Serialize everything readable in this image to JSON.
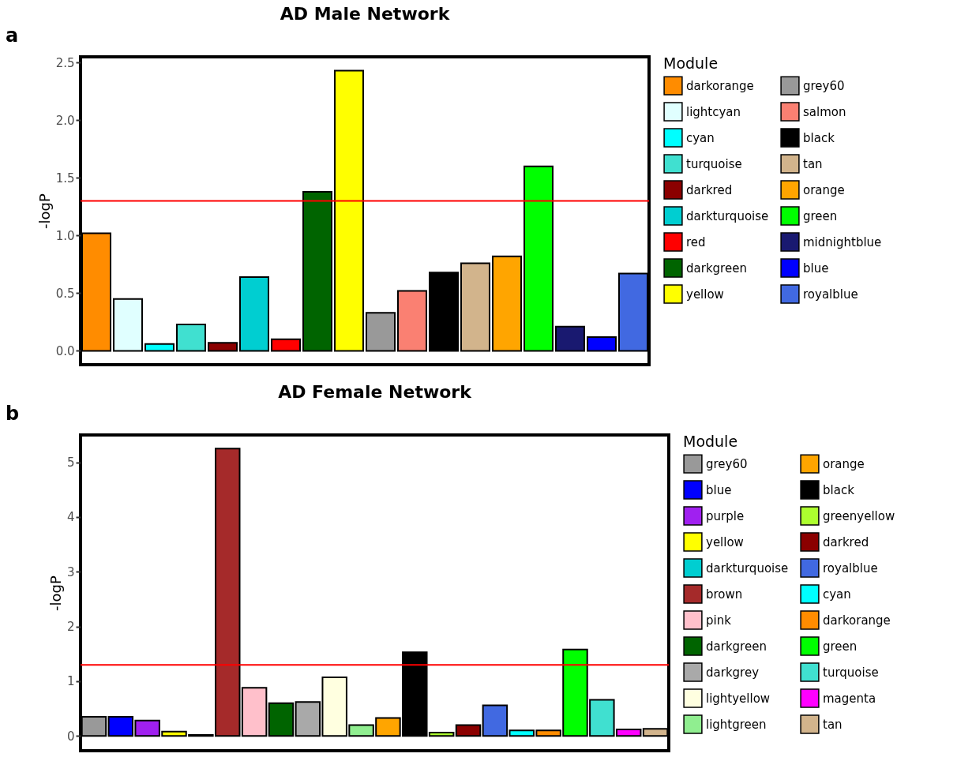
{
  "chart_data": [
    {
      "type": "bar",
      "title": "AD Male Network",
      "ylabel": "-logP",
      "legend_title": "Module",
      "legend": "right",
      "tick_labels": "y",
      "annotations": [
        "a"
      ],
      "categories": [
        null,
        null,
        null,
        null,
        null,
        null,
        null,
        null,
        null,
        null,
        null,
        null,
        null,
        null,
        null,
        null,
        null,
        null
      ],
      "series": [
        {
          "name": "darkorange",
          "color": "#ff8c00",
          "values": [
            1.02,
            null,
            null,
            null,
            null,
            null,
            null,
            null,
            null,
            null,
            null,
            null,
            null,
            null,
            null,
            null,
            null,
            null
          ]
        },
        {
          "name": "lightcyan",
          "color": "#e0ffff",
          "values": [
            null,
            0.45,
            null,
            null,
            null,
            null,
            null,
            null,
            null,
            null,
            null,
            null,
            null,
            null,
            null,
            null,
            null,
            null
          ]
        },
        {
          "name": "cyan",
          "color": "#00ffff",
          "values": [
            null,
            null,
            0.06,
            null,
            null,
            null,
            null,
            null,
            null,
            null,
            null,
            null,
            null,
            null,
            null,
            null,
            null,
            null
          ]
        },
        {
          "name": "turquoise",
          "color": "#40e0d0",
          "values": [
            null,
            null,
            null,
            0.23,
            null,
            null,
            null,
            null,
            null,
            null,
            null,
            null,
            null,
            null,
            null,
            null,
            null,
            null
          ]
        },
        {
          "name": "darkred",
          "color": "#8b0000",
          "values": [
            null,
            null,
            null,
            null,
            0.07,
            null,
            null,
            null,
            null,
            null,
            null,
            null,
            null,
            null,
            null,
            null,
            null,
            null
          ]
        },
        {
          "name": "darkturquoise",
          "color": "#00ced1",
          "values": [
            null,
            null,
            null,
            null,
            null,
            0.64,
            null,
            null,
            null,
            null,
            null,
            null,
            null,
            null,
            null,
            null,
            null,
            null
          ]
        },
        {
          "name": "red",
          "color": "#ff0000",
          "values": [
            null,
            null,
            null,
            null,
            null,
            null,
            0.1,
            null,
            null,
            null,
            null,
            null,
            null,
            null,
            null,
            null,
            null,
            null
          ]
        },
        {
          "name": "darkgreen",
          "color": "#006400",
          "values": [
            null,
            null,
            null,
            null,
            null,
            null,
            null,
            1.38,
            null,
            null,
            null,
            null,
            null,
            null,
            null,
            null,
            null,
            null
          ]
        },
        {
          "name": "yellow",
          "color": "#ffff00",
          "values": [
            null,
            null,
            null,
            null,
            null,
            null,
            null,
            null,
            2.43,
            null,
            null,
            null,
            null,
            null,
            null,
            null,
            null,
            null
          ]
        },
        {
          "name": "grey60",
          "color": "#999999",
          "values": [
            null,
            null,
            null,
            null,
            null,
            null,
            null,
            null,
            null,
            0.33,
            null,
            null,
            null,
            null,
            null,
            null,
            null,
            null
          ]
        },
        {
          "name": "salmon",
          "color": "#fa8072",
          "values": [
            null,
            null,
            null,
            null,
            null,
            null,
            null,
            null,
            null,
            null,
            0.52,
            null,
            null,
            null,
            null,
            null,
            null,
            null
          ]
        },
        {
          "name": "black",
          "color": "#000000",
          "values": [
            null,
            null,
            null,
            null,
            null,
            null,
            null,
            null,
            null,
            null,
            null,
            0.68,
            null,
            null,
            null,
            null,
            null,
            null
          ]
        },
        {
          "name": "tan",
          "color": "#d2b48c",
          "values": [
            null,
            null,
            null,
            null,
            null,
            null,
            null,
            null,
            null,
            null,
            null,
            null,
            0.76,
            null,
            null,
            null,
            null,
            null
          ]
        },
        {
          "name": "orange",
          "color": "#ffa500",
          "values": [
            null,
            null,
            null,
            null,
            null,
            null,
            null,
            null,
            null,
            null,
            null,
            null,
            null,
            0.82,
            null,
            null,
            null,
            null
          ]
        },
        {
          "name": "green",
          "color": "#00ff00",
          "values": [
            null,
            null,
            null,
            null,
            null,
            null,
            null,
            null,
            null,
            null,
            null,
            null,
            null,
            null,
            1.6,
            null,
            null,
            null
          ]
        },
        {
          "name": "midnightblue",
          "color": "#191970",
          "values": [
            null,
            null,
            null,
            null,
            null,
            null,
            null,
            null,
            null,
            null,
            null,
            null,
            null,
            null,
            null,
            0.21,
            null,
            null
          ]
        },
        {
          "name": "blue",
          "color": "#0000ff",
          "values": [
            null,
            null,
            null,
            null,
            null,
            null,
            null,
            null,
            null,
            null,
            null,
            null,
            null,
            null,
            null,
            null,
            0.12,
            null
          ]
        },
        {
          "name": "royalblue",
          "color": "#4169e1",
          "values": [
            null,
            null,
            null,
            null,
            null,
            null,
            null,
            null,
            null,
            null,
            null,
            null,
            null,
            null,
            null,
            null,
            null,
            0.67
          ]
        }
      ],
      "ylim": [
        -0.12,
        2.55
      ],
      "yticks": [
        {
          "value": 0,
          "label": "0.0"
        },
        0.5,
        {
          "value": 1,
          "label": "1.0"
        },
        1.5,
        {
          "value": 2,
          "label": "2.0"
        },
        2.5
      ],
      "ref_lines": [
        {
          "axis": "y",
          "value": 1.3,
          "color": "#ff0000"
        }
      ]
    },
    {
      "type": "bar",
      "title": "AD Female Network",
      "ylabel": "-logP",
      "legend_title": "Module",
      "legend": "right",
      "tick_labels": "y",
      "annotations": [
        "b"
      ],
      "categories": [
        null,
        null,
        null,
        null,
        null,
        null,
        null,
        null,
        null,
        null,
        null,
        null,
        null,
        null,
        null,
        null,
        null,
        null,
        null,
        null,
        null,
        null
      ],
      "series": [
        {
          "name": "grey60",
          "color": "#999999",
          "values": [
            0.35,
            null,
            null,
            null,
            null,
            null,
            null,
            null,
            null,
            null,
            null,
            null,
            null,
            null,
            null,
            null,
            null,
            null,
            null,
            null,
            null,
            null
          ]
        },
        {
          "name": "blue",
          "color": "#0000ff",
          "values": [
            null,
            0.35,
            null,
            null,
            null,
            null,
            null,
            null,
            null,
            null,
            null,
            null,
            null,
            null,
            null,
            null,
            null,
            null,
            null,
            null,
            null,
            null
          ]
        },
        {
          "name": "purple",
          "color": "#a020f0",
          "values": [
            null,
            null,
            0.28,
            null,
            null,
            null,
            null,
            null,
            null,
            null,
            null,
            null,
            null,
            null,
            null,
            null,
            null,
            null,
            null,
            null,
            null,
            null
          ]
        },
        {
          "name": "yellow",
          "color": "#ffff00",
          "values": [
            null,
            null,
            null,
            0.08,
            null,
            null,
            null,
            null,
            null,
            null,
            null,
            null,
            null,
            null,
            null,
            null,
            null,
            null,
            null,
            null,
            null,
            null
          ]
        },
        {
          "name": "darkturquoise",
          "color": "#00ced1",
          "values": [
            null,
            null,
            null,
            null,
            0.02,
            null,
            null,
            null,
            null,
            null,
            null,
            null,
            null,
            null,
            null,
            null,
            null,
            null,
            null,
            null,
            null,
            null
          ]
        },
        {
          "name": "brown",
          "color": "#a52a2a",
          "values": [
            null,
            null,
            null,
            null,
            null,
            5.25,
            null,
            null,
            null,
            null,
            null,
            null,
            null,
            null,
            null,
            null,
            null,
            null,
            null,
            null,
            null,
            null
          ]
        },
        {
          "name": "pink",
          "color": "#ffc0cb",
          "values": [
            null,
            null,
            null,
            null,
            null,
            null,
            0.88,
            null,
            null,
            null,
            null,
            null,
            null,
            null,
            null,
            null,
            null,
            null,
            null,
            null,
            null,
            null
          ]
        },
        {
          "name": "darkgreen",
          "color": "#006400",
          "values": [
            null,
            null,
            null,
            null,
            null,
            null,
            null,
            0.6,
            null,
            null,
            null,
            null,
            null,
            null,
            null,
            null,
            null,
            null,
            null,
            null,
            null,
            null
          ]
        },
        {
          "name": "darkgrey",
          "color": "#a9a9a9",
          "values": [
            null,
            null,
            null,
            null,
            null,
            null,
            null,
            null,
            0.62,
            null,
            null,
            null,
            null,
            null,
            null,
            null,
            null,
            null,
            null,
            null,
            null,
            null
          ]
        },
        {
          "name": "lightyellow",
          "color": "#ffffe0",
          "values": [
            null,
            null,
            null,
            null,
            null,
            null,
            null,
            null,
            null,
            1.07,
            null,
            null,
            null,
            null,
            null,
            null,
            null,
            null,
            null,
            null,
            null,
            null
          ]
        },
        {
          "name": "lightgreen",
          "color": "#90ee90",
          "values": [
            null,
            null,
            null,
            null,
            null,
            null,
            null,
            null,
            null,
            null,
            0.2,
            null,
            null,
            null,
            null,
            null,
            null,
            null,
            null,
            null,
            null,
            null
          ]
        },
        {
          "name": "orange",
          "color": "#ffa500",
          "values": [
            null,
            null,
            null,
            null,
            null,
            null,
            null,
            null,
            null,
            null,
            null,
            0.33,
            null,
            null,
            null,
            null,
            null,
            null,
            null,
            null,
            null,
            null
          ]
        },
        {
          "name": "black",
          "color": "#000000",
          "values": [
            null,
            null,
            null,
            null,
            null,
            null,
            null,
            null,
            null,
            null,
            null,
            null,
            1.53,
            null,
            null,
            null,
            null,
            null,
            null,
            null,
            null,
            null
          ]
        },
        {
          "name": "greenyellow",
          "color": "#adff2f",
          "values": [
            null,
            null,
            null,
            null,
            null,
            null,
            null,
            null,
            null,
            null,
            null,
            null,
            null,
            0.06,
            null,
            null,
            null,
            null,
            null,
            null,
            null,
            null
          ]
        },
        {
          "name": "darkred",
          "color": "#8b0000",
          "values": [
            null,
            null,
            null,
            null,
            null,
            null,
            null,
            null,
            null,
            null,
            null,
            null,
            null,
            null,
            0.2,
            null,
            null,
            null,
            null,
            null,
            null,
            null
          ]
        },
        {
          "name": "royalblue",
          "color": "#4169e1",
          "values": [
            null,
            null,
            null,
            null,
            null,
            null,
            null,
            null,
            null,
            null,
            null,
            null,
            null,
            null,
            null,
            0.56,
            null,
            null,
            null,
            null,
            null,
            null
          ]
        },
        {
          "name": "cyan",
          "color": "#00ffff",
          "values": [
            null,
            null,
            null,
            null,
            null,
            null,
            null,
            null,
            null,
            null,
            null,
            null,
            null,
            null,
            null,
            null,
            0.1,
            null,
            null,
            null,
            null,
            null
          ]
        },
        {
          "name": "darkorange",
          "color": "#ff8c00",
          "values": [
            null,
            null,
            null,
            null,
            null,
            null,
            null,
            null,
            null,
            null,
            null,
            null,
            null,
            null,
            null,
            null,
            null,
            0.1,
            null,
            null,
            null,
            null
          ]
        },
        {
          "name": "green",
          "color": "#00ff00",
          "values": [
            null,
            null,
            null,
            null,
            null,
            null,
            null,
            null,
            null,
            null,
            null,
            null,
            null,
            null,
            null,
            null,
            null,
            null,
            1.58,
            null,
            null,
            null
          ]
        },
        {
          "name": "turquoise",
          "color": "#40e0d0",
          "values": [
            null,
            null,
            null,
            null,
            null,
            null,
            null,
            null,
            null,
            null,
            null,
            null,
            null,
            null,
            null,
            null,
            null,
            null,
            null,
            0.66,
            null,
            null
          ]
        },
        {
          "name": "magenta",
          "color": "#ff00ff",
          "values": [
            null,
            null,
            null,
            null,
            null,
            null,
            null,
            null,
            null,
            null,
            null,
            null,
            null,
            null,
            null,
            null,
            null,
            null,
            null,
            null,
            0.12,
            null
          ]
        },
        {
          "name": "tan",
          "color": "#d2b48c",
          "values": [
            null,
            null,
            null,
            null,
            null,
            null,
            null,
            null,
            null,
            null,
            null,
            null,
            null,
            null,
            null,
            null,
            null,
            null,
            null,
            null,
            null,
            0.13
          ]
        }
      ],
      "ylim": [
        -0.27,
        5.5
      ],
      "yticks": [
        0,
        1,
        2,
        3,
        4,
        5
      ],
      "ref_lines": [
        {
          "axis": "y",
          "value": 1.3,
          "color": "#ff0000"
        }
      ]
    }
  ]
}
